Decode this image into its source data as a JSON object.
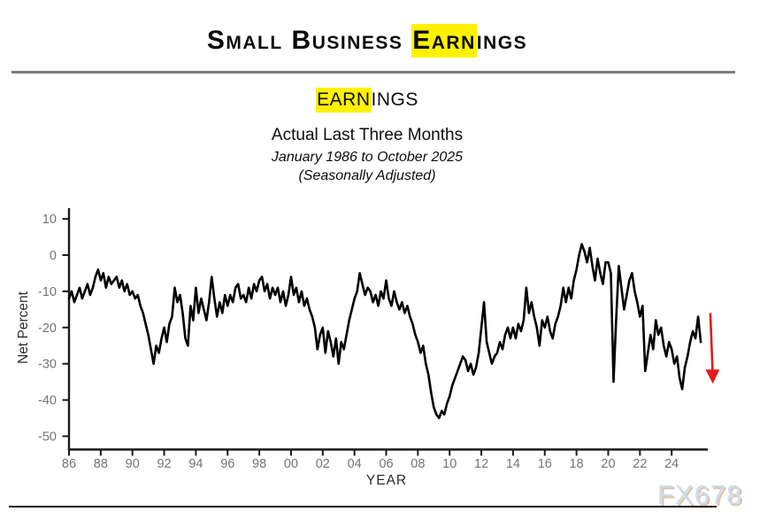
{
  "header": {
    "title": {
      "pre": "Small Business ",
      "highlight": "Earn",
      "post": "ings"
    }
  },
  "chart_header": {
    "subtitle": {
      "highlight": "EARN",
      "post": "INGS"
    },
    "measure_line": "Actual Last Three Months",
    "period_line": "January 1986 to October 2025",
    "adjustment_line": "(Seasonally Adjusted)"
  },
  "watermark": "FX678",
  "colors": {
    "highlight": "#fff200",
    "line": "#000000",
    "axis": "#1a1a1a",
    "tick_label": "#757575",
    "axis_title": "#2b2b2b",
    "arrow": "#e41c1c",
    "watermark_text": "#cfdcee",
    "top_rule": "#7d7d7d"
  },
  "chart_data": {
    "type": "line",
    "title": "EARNINGS",
    "subtitle": "Actual Last Three Months, January 1986 to October 2025 (Seasonally Adjusted)",
    "xlabel": "YEAR",
    "ylabel": "Net Percent",
    "grid": false,
    "legend": false,
    "ylim": [
      -50,
      10
    ],
    "y_ticks": [
      10,
      0,
      -10,
      -20,
      -30,
      -40,
      -50
    ],
    "x_tick_labels": [
      "86",
      "88",
      "90",
      "92",
      "94",
      "96",
      "98",
      "00",
      "02",
      "04",
      "06",
      "08",
      "10",
      "12",
      "14",
      "16",
      "18",
      "20",
      "22",
      "24"
    ],
    "x_tick_start_year": 1986,
    "x_tick_step_years": 2,
    "x_start_year": 1986,
    "x_step_months": 2,
    "x_end_label": "October 2025",
    "series": [
      {
        "name": "Earnings, net percent (actual last three months)",
        "values": [
          -12,
          -10,
          -13,
          -11,
          -9,
          -12,
          -10,
          -8,
          -11,
          -9,
          -6,
          -4,
          -7,
          -5,
          -9,
          -6,
          -8,
          -7,
          -6,
          -9,
          -7,
          -10,
          -8,
          -11,
          -10,
          -12,
          -11,
          -14,
          -16,
          -19,
          -22,
          -26,
          -30,
          -25,
          -27,
          -23,
          -20,
          -24,
          -19,
          -17,
          -9,
          -13,
          -11,
          -16,
          -23,
          -25,
          -14,
          -18,
          -9,
          -16,
          -12,
          -15,
          -18,
          -13,
          -6,
          -12,
          -17,
          -13,
          -16,
          -11,
          -14,
          -11,
          -13,
          -9,
          -8,
          -12,
          -11,
          -13,
          -9,
          -12,
          -8,
          -10,
          -7,
          -6,
          -10,
          -8,
          -12,
          -9,
          -11,
          -9,
          -13,
          -10,
          -14,
          -11,
          -6,
          -11,
          -9,
          -13,
          -10,
          -14,
          -12,
          -15,
          -17,
          -20,
          -26,
          -22,
          -20,
          -27,
          -21,
          -24,
          -28,
          -23,
          -30,
          -24,
          -26,
          -22,
          -18,
          -15,
          -12,
          -10,
          -5,
          -8,
          -11,
          -9,
          -10,
          -13,
          -11,
          -14,
          -10,
          -12,
          -7,
          -12,
          -14,
          -10,
          -13,
          -15,
          -13,
          -16,
          -14,
          -17,
          -19,
          -22,
          -24,
          -27,
          -25,
          -30,
          -33,
          -38,
          -42,
          -44,
          -45,
          -43,
          -44,
          -41,
          -39,
          -36,
          -34,
          -32,
          -30,
          -28,
          -29,
          -32,
          -30,
          -33,
          -31,
          -27,
          -20,
          -13,
          -24,
          -27,
          -30,
          -28,
          -27,
          -24,
          -26,
          -22,
          -20,
          -23,
          -20,
          -23,
          -19,
          -21,
          -18,
          -9,
          -16,
          -13,
          -17,
          -20,
          -25,
          -18,
          -20,
          -17,
          -21,
          -23,
          -19,
          -17,
          -14,
          -9,
          -13,
          -9,
          -12,
          -7,
          -4,
          0,
          3,
          1,
          -2,
          2,
          -3,
          -7,
          -1,
          -5,
          -8,
          -2,
          -2,
          -5,
          -35,
          -18,
          -3,
          -9,
          -15,
          -11,
          -7,
          -5,
          -10,
          -13,
          -17,
          -14,
          -32,
          -27,
          -22,
          -26,
          -18,
          -22,
          -20,
          -25,
          -28,
          -24,
          -26,
          -30,
          -28,
          -34,
          -37,
          -31,
          -28,
          -24,
          -21,
          -23,
          -17,
          -24
        ]
      }
    ],
    "annotation": {
      "symbol": "red-down-arrow",
      "color": "#e41c1c",
      "at_year": 2026.55,
      "from_value": -16,
      "to_value": -35.5
    }
  }
}
